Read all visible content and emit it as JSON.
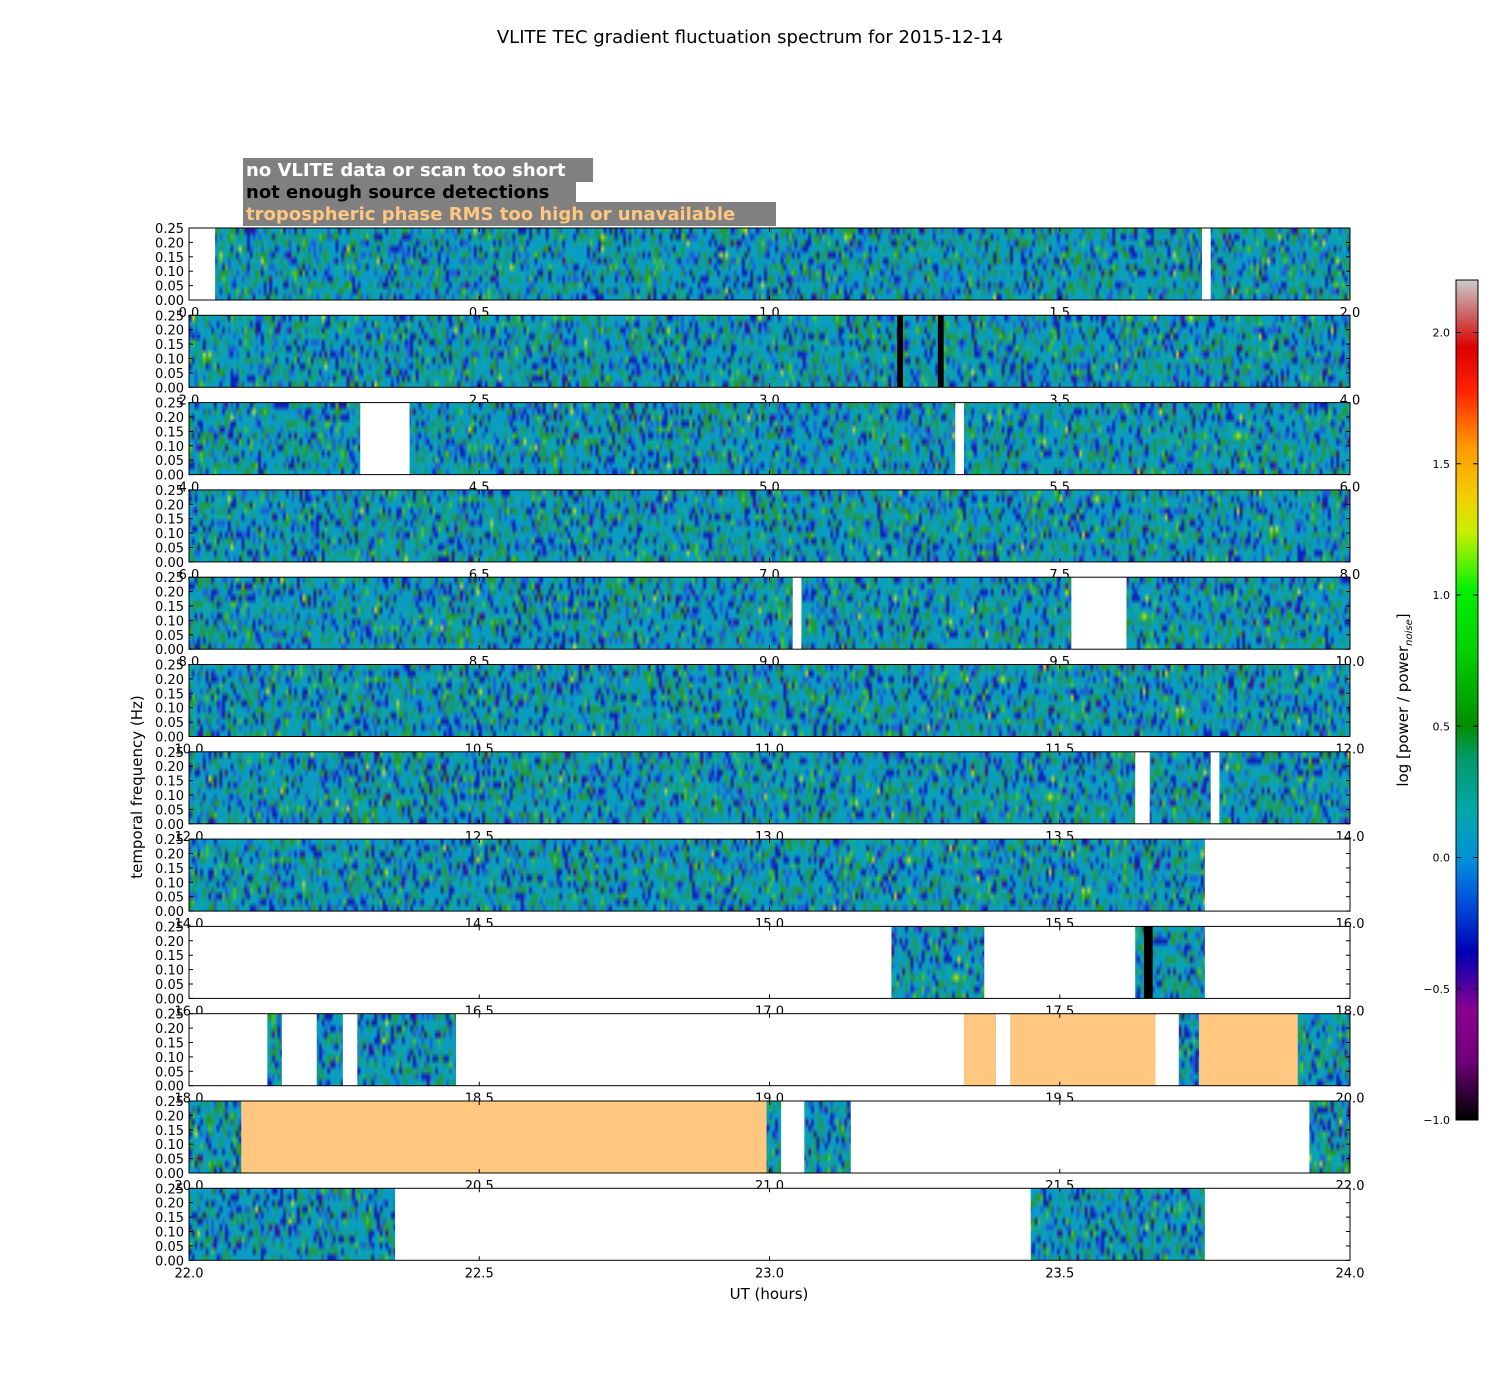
{
  "chart_data": {
    "type": "heatmap",
    "title": "VLITE TEC gradient fluctuation spectrum for 2015-12-14",
    "xlabel": "UT (hours)",
    "ylabel": "temporal frequency (Hz)",
    "colorbar_label": "log [power / power",
    "colorbar_label_sub": "noise",
    "colorbar_label_end": "]",
    "colorbar_range": [
      -1.0,
      2.2
    ],
    "colorbar_ticks": [
      "-1.0",
      "-0.5",
      "0.0",
      "0.5",
      "1.0",
      "1.5",
      "2.0"
    ],
    "ylim": [
      0.0,
      0.25
    ],
    "y_ticks": [
      "0.00",
      "0.05",
      "0.10",
      "0.15",
      "0.20",
      "0.25"
    ],
    "legend": [
      {
        "label": "no VLITE data or scan too short",
        "text_color": "#ffffff"
      },
      {
        "label": "not enough source detections",
        "text_color": "#000000"
      },
      {
        "label": "tropospheric phase RMS too high or unavailable",
        "text_color": "#ffc77f"
      }
    ],
    "legend_background": "#808080",
    "colors": {
      "no_data": "#ffffff",
      "not_enough_detections": "#000000",
      "troposphere_flag": "#ffc77f"
    },
    "panels": [
      {
        "xlim": [
          0.0,
          2.0
        ],
        "x_ticks": [
          "0.0",
          "0.5",
          "1.0",
          "1.5",
          "2.0"
        ],
        "segments": [
          [
            0.0,
            0.045,
            "none"
          ],
          [
            1.745,
            1.76,
            "none"
          ]
        ]
      },
      {
        "xlim": [
          2.0,
          4.0
        ],
        "x_ticks": [
          "2.0",
          "2.5",
          "3.0",
          "3.5",
          "4.0"
        ],
        "segments": [
          [
            3.22,
            3.23,
            "detect"
          ],
          [
            3.29,
            3.3,
            "detect"
          ]
        ]
      },
      {
        "xlim": [
          4.0,
          6.0
        ],
        "x_ticks": [
          "4.0",
          "4.5",
          "5.0",
          "5.5",
          "6.0"
        ],
        "segments": [
          [
            4.295,
            4.38,
            "none"
          ],
          [
            5.32,
            5.335,
            "none"
          ]
        ]
      },
      {
        "xlim": [
          6.0,
          8.0
        ],
        "x_ticks": [
          "6.0",
          "6.5",
          "7.0",
          "7.5",
          "8.0"
        ],
        "segments": []
      },
      {
        "xlim": [
          8.0,
          10.0
        ],
        "x_ticks": [
          "8.0",
          "8.5",
          "9.0",
          "9.5",
          "10.0"
        ],
        "segments": [
          [
            9.04,
            9.055,
            "none"
          ],
          [
            9.52,
            9.615,
            "none"
          ]
        ]
      },
      {
        "xlim": [
          10.0,
          12.0
        ],
        "x_ticks": [
          "10.0",
          "10.5",
          "11.0",
          "11.5",
          "12.0"
        ],
        "segments": []
      },
      {
        "xlim": [
          12.0,
          14.0
        ],
        "x_ticks": [
          "12.0",
          "12.5",
          "13.0",
          "13.5",
          "14.0"
        ],
        "segments": [
          [
            13.63,
            13.655,
            "none"
          ],
          [
            13.76,
            13.775,
            "none"
          ]
        ]
      },
      {
        "xlim": [
          14.0,
          16.0
        ],
        "x_ticks": [
          "14.0",
          "14.5",
          "15.0",
          "15.5",
          "16.0"
        ],
        "segments": [
          [
            15.75,
            16.0,
            "none"
          ]
        ]
      },
      {
        "xlim": [
          16.0,
          18.0
        ],
        "x_ticks": [
          "16.0",
          "16.5",
          "17.0",
          "17.5",
          "18.0"
        ],
        "segments": [
          [
            16.0,
            17.21,
            "none"
          ],
          [
            17.37,
            17.63,
            "none"
          ],
          [
            17.645,
            17.66,
            "detect"
          ],
          [
            17.75,
            18.0,
            "none"
          ]
        ]
      },
      {
        "xlim": [
          18.0,
          20.0
        ],
        "x_ticks": [
          "18.0",
          "18.5",
          "19.0",
          "19.5",
          "20.0"
        ],
        "segments": [
          [
            18.0,
            18.135,
            "none"
          ],
          [
            18.16,
            18.22,
            "none"
          ],
          [
            18.265,
            18.29,
            "none"
          ],
          [
            18.46,
            19.335,
            "none"
          ],
          [
            19.335,
            19.39,
            "tropo"
          ],
          [
            19.39,
            19.415,
            "none"
          ],
          [
            19.415,
            19.665,
            "tropo"
          ],
          [
            19.665,
            19.705,
            "none"
          ],
          [
            19.74,
            19.91,
            "tropo"
          ]
        ]
      },
      {
        "xlim": [
          20.0,
          22.0
        ],
        "x_ticks": [
          "20.0",
          "20.5",
          "21.0",
          "21.5",
          "22.0"
        ],
        "segments": [
          [
            20.09,
            20.995,
            "tropo"
          ],
          [
            21.02,
            21.06,
            "none"
          ],
          [
            21.14,
            21.93,
            "none"
          ]
        ]
      },
      {
        "xlim": [
          22.0,
          24.0
        ],
        "x_ticks": [
          "22.0",
          "22.5",
          "23.0",
          "23.5",
          "24.0"
        ],
        "segments": [
          [
            22.355,
            23.45,
            "none"
          ],
          [
            23.75,
            24.0,
            "none"
          ]
        ]
      }
    ]
  }
}
